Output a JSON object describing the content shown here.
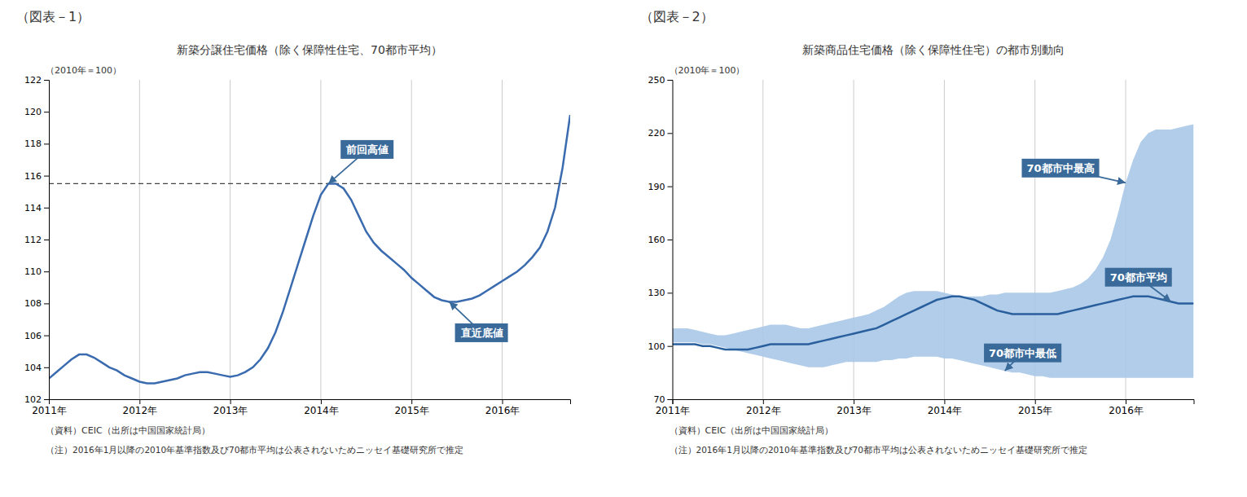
{
  "chart_data": [
    {
      "type": "line",
      "panel_label": "（図表－1）",
      "title": "新築分譲住宅価格（除く保障性住宅、70都市平均）",
      "ylabel": "（2010年＝100）",
      "source": "（資料）CEIC（出所は中国国家統計局）",
      "note": "（注）2016年1月以降の2010年基準指数及び70都市平均は公表されないためニッセイ基礎研究所で推定",
      "grid": true,
      "xlim": [
        0,
        69
      ],
      "xticks": [
        {
          "value": 0,
          "label": "2011年"
        },
        {
          "value": 12,
          "label": "2012年"
        },
        {
          "value": 24,
          "label": "2013年"
        },
        {
          "value": 36,
          "label": "2014年"
        },
        {
          "value": 48,
          "label": "2015年"
        },
        {
          "value": 60,
          "label": "2016年"
        }
      ],
      "ylim": [
        102,
        122
      ],
      "yticks": [
        102,
        104,
        106,
        108,
        110,
        112,
        114,
        116,
        118,
        120,
        122
      ],
      "x": [
        0,
        1,
        2,
        3,
        4,
        5,
        6,
        7,
        8,
        9,
        10,
        11,
        12,
        13,
        14,
        15,
        16,
        17,
        18,
        19,
        20,
        21,
        22,
        23,
        24,
        25,
        26,
        27,
        28,
        29,
        30,
        31,
        32,
        33,
        34,
        35,
        36,
        37,
        38,
        39,
        40,
        41,
        42,
        43,
        44,
        45,
        46,
        47,
        48,
        49,
        50,
        51,
        52,
        53,
        54,
        55,
        56,
        57,
        58,
        59,
        60,
        61,
        62,
        63,
        64,
        65,
        66,
        67,
        68,
        69
      ],
      "series": [
        {
          "type": "line",
          "color": "#3a6baf",
          "values": [
            103.3,
            103.7,
            104.1,
            104.5,
            104.8,
            104.8,
            104.6,
            104.3,
            104.0,
            103.8,
            103.5,
            103.3,
            103.1,
            103.0,
            103.0,
            103.1,
            103.2,
            103.3,
            103.5,
            103.6,
            103.7,
            103.7,
            103.6,
            103.5,
            103.4,
            103.5,
            103.7,
            104.0,
            104.5,
            105.2,
            106.2,
            107.5,
            109.0,
            110.5,
            112.0,
            113.5,
            114.8,
            115.5,
            115.5,
            115.2,
            114.5,
            113.5,
            112.5,
            111.8,
            111.3,
            110.9,
            110.5,
            110.1,
            109.6,
            109.2,
            108.8,
            108.4,
            108.2,
            108.1,
            108.1,
            108.2,
            108.3,
            108.5,
            108.8,
            109.1,
            109.4,
            109.7,
            110.0,
            110.4,
            110.9,
            111.5,
            112.5,
            114.0,
            116.5,
            119.8
          ]
        }
      ],
      "reference_lines": [
        {
          "y": 115.5,
          "line_style": "dashed",
          "color": "#444444"
        }
      ],
      "annotations": [
        {
          "text": "前回高値",
          "x": 37,
          "y": 115.5,
          "color": "#3a6a9a"
        },
        {
          "text": "直近底値",
          "x": 53,
          "y": 108.1,
          "color": "#3a6a9a"
        }
      ]
    },
    {
      "type": "line",
      "panel_label": "（図表－2）",
      "title": "新築商品住宅価格（除く保障性住宅）の都市別動向",
      "ylabel": "（2010年＝100）",
      "source": "（資料）CEIC（出所は中国国家統計局）",
      "note": "（注）2016年1月以降の2010年基準指数及び70都市平均は公表されないためニッセイ基礎研究所で推定",
      "grid": true,
      "xlim": [
        0,
        69
      ],
      "xticks": [
        {
          "value": 0,
          "label": "2011年"
        },
        {
          "value": 12,
          "label": "2012年"
        },
        {
          "value": 24,
          "label": "2013年"
        },
        {
          "value": 36,
          "label": "2014年"
        },
        {
          "value": 48,
          "label": "2015年"
        },
        {
          "value": 60,
          "label": "2016年"
        }
      ],
      "ylim": [
        70,
        250
      ],
      "yticks": [
        70,
        100,
        130,
        160,
        190,
        220,
        250
      ],
      "x": [
        0,
        1,
        2,
        3,
        4,
        5,
        6,
        7,
        8,
        9,
        10,
        11,
        12,
        13,
        14,
        15,
        16,
        17,
        18,
        19,
        20,
        21,
        22,
        23,
        24,
        25,
        26,
        27,
        28,
        29,
        30,
        31,
        32,
        33,
        34,
        35,
        36,
        37,
        38,
        39,
        40,
        41,
        42,
        43,
        44,
        45,
        46,
        47,
        48,
        49,
        50,
        51,
        52,
        53,
        54,
        55,
        56,
        57,
        58,
        59,
        60,
        61,
        62,
        63,
        64,
        65,
        66,
        67,
        68,
        69
      ],
      "series": [
        {
          "type": "band",
          "color": "#a8c8e8",
          "low": [
            102,
            102,
            102,
            102,
            101,
            101,
            100,
            99,
            98,
            97,
            96,
            95,
            94,
            93,
            92,
            91,
            90,
            89,
            88,
            88,
            88,
            89,
            90,
            91,
            91,
            91,
            91,
            91,
            92,
            92,
            93,
            93,
            94,
            94,
            94,
            94,
            93,
            93,
            92,
            91,
            90,
            89,
            88,
            87,
            86,
            85,
            85,
            84,
            83,
            83,
            82,
            82,
            82,
            82,
            82,
            82,
            82,
            82,
            82,
            82,
            82,
            82,
            82,
            82,
            82,
            82,
            82,
            82,
            82,
            82
          ],
          "high": [
            110,
            110,
            110,
            109,
            108,
            107,
            106,
            106,
            107,
            108,
            109,
            110,
            111,
            112,
            112,
            112,
            111,
            110,
            110,
            111,
            112,
            113,
            114,
            115,
            116,
            117,
            118,
            120,
            122,
            125,
            128,
            130,
            131,
            131,
            131,
            131,
            130,
            129,
            128,
            128,
            128,
            128,
            129,
            129,
            130,
            130,
            130,
            130,
            130,
            130,
            130,
            131,
            132,
            133,
            135,
            138,
            143,
            150,
            160,
            175,
            192,
            205,
            215,
            220,
            222,
            222,
            222,
            223,
            224,
            225
          ]
        },
        {
          "type": "line",
          "color": "#2a5f9e",
          "values": [
            101,
            101,
            101,
            101,
            100,
            100,
            99,
            98,
            98,
            98,
            98,
            99,
            100,
            101,
            101,
            101,
            101,
            101,
            101,
            102,
            103,
            104,
            105,
            106,
            107,
            108,
            109,
            110,
            112,
            114,
            116,
            118,
            120,
            122,
            124,
            126,
            127,
            128,
            128,
            127,
            126,
            124,
            122,
            120,
            119,
            118,
            118,
            118,
            118,
            118,
            118,
            118,
            119,
            120,
            121,
            122,
            123,
            124,
            125,
            126,
            127,
            128,
            128,
            128,
            127,
            126,
            125,
            124,
            124,
            124
          ]
        }
      ],
      "annotations": [
        {
          "text": "70都市中最高",
          "x": 60,
          "y": 192,
          "color": "#3a6a9a"
        },
        {
          "text": "70都市平均",
          "x": 66,
          "y": 125,
          "color": "#3a6a9a"
        },
        {
          "text": "70都市中最低",
          "x": 44,
          "y": 86,
          "color": "#3a6a9a"
        }
      ]
    }
  ]
}
